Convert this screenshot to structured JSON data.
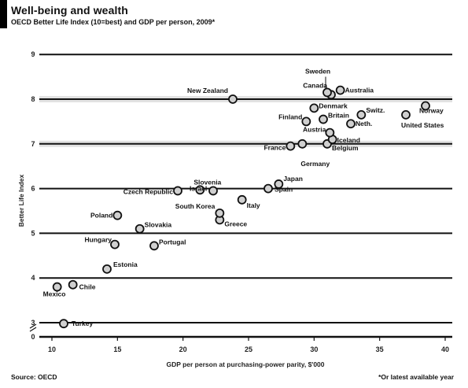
{
  "header": {
    "title": "Well-being and wealth",
    "subtitle": "OECD Better Life Index (10=best) and GDP per person, 2009*"
  },
  "footer": {
    "source": "Source: OECD",
    "note": "*Or latest available year"
  },
  "chart_data": {
    "type": "scatter",
    "title": "Well-being and wealth",
    "subtitle": "OECD Better Life Index (10=best) and GDP per person, 2009*",
    "xlabel": "GDP per person at purchasing-power parity, $'000",
    "ylabel": "Better Life Index",
    "x_ticks": [
      "10",
      "15",
      "20",
      "25",
      "30",
      "35",
      "40"
    ],
    "y_ticks": [
      "9",
      "8",
      "7",
      "6",
      "5",
      "4",
      "3",
      "0"
    ],
    "xlim": [
      10,
      40
    ],
    "y_axis_broken": true,
    "grid": "horizontal",
    "points": [
      {
        "label": "Turkey",
        "x": 10.9,
        "y": 2.8
      },
      {
        "label": "Mexico",
        "x": 10.4,
        "y": 3.8
      },
      {
        "label": "Chile",
        "x": 11.6,
        "y": 3.85
      },
      {
        "label": "Estonia",
        "x": 14.2,
        "y": 4.2
      },
      {
        "label": "Hungary",
        "x": 14.8,
        "y": 4.75
      },
      {
        "label": "Portugal",
        "x": 17.8,
        "y": 4.72
      },
      {
        "label": "Slovakia",
        "x": 16.7,
        "y": 5.1
      },
      {
        "label": "Poland",
        "x": 15.0,
        "y": 5.4
      },
      {
        "label": "Czech Republic",
        "x": 19.6,
        "y": 5.95
      },
      {
        "label": "Slovenia",
        "x": 21.3,
        "y": 5.97
      },
      {
        "label": "Greece",
        "x": 22.8,
        "y": 5.3
      },
      {
        "label": "South Korea",
        "x": 22.8,
        "y": 5.45
      },
      {
        "label": "Israel",
        "x": 22.3,
        "y": 5.95
      },
      {
        "label": "Italy",
        "x": 24.5,
        "y": 5.75
      },
      {
        "label": "Spain",
        "x": 26.5,
        "y": 6.0
      },
      {
        "label": "Japan",
        "x": 27.3,
        "y": 6.1
      },
      {
        "label": "New Zealand",
        "x": 23.8,
        "y": 8.0
      },
      {
        "label": "France",
        "x": 28.2,
        "y": 6.95
      },
      {
        "label": "Germany",
        "x": 29.1,
        "y": 7.0
      },
      {
        "label": "Belgium",
        "x": 31.0,
        "y": 7.0
      },
      {
        "label": "Iceland",
        "x": 31.4,
        "y": 7.1
      },
      {
        "label": "Austria",
        "x": 31.2,
        "y": 7.25
      },
      {
        "label": "Netherlands",
        "x": 32.8,
        "y": 7.45
      },
      {
        "label": "Switzerland",
        "x": 33.6,
        "y": 7.65
      },
      {
        "label": "United Kingdom",
        "x": 30.7,
        "y": 7.55
      },
      {
        "label": "Finland",
        "x": 29.4,
        "y": 7.5
      },
      {
        "label": "Denmark",
        "x": 30.0,
        "y": 7.8
      },
      {
        "label": "Canada",
        "x": 31.3,
        "y": 8.1
      },
      {
        "label": "Sweden",
        "x": 31.0,
        "y": 8.15
      },
      {
        "label": "Australia",
        "x": 32.0,
        "y": 8.2
      },
      {
        "label": "United States",
        "x": 37.0,
        "y": 7.65
      },
      {
        "label": "Norway",
        "x": 38.5,
        "y": 7.85
      }
    ],
    "point_labels": {
      "Turkey": "Turkey",
      "Mexico": "Mexico",
      "Chile": "Chile",
      "Estonia": "Estonia",
      "Hungary": "Hungary",
      "Portugal": "Portugal",
      "Slovakia": "Slovakia",
      "Poland": "Poland",
      "Czech Republic": "Czech Republic",
      "Slovenia": "Slovenia",
      "Greece": "Greece",
      "South Korea": "South Korea",
      "Israel": "Israel",
      "Italy": "Italy",
      "Spain": "Spain",
      "Japan": "Japan",
      "New Zealand": "New Zealand",
      "France": "France",
      "Germany": "Germany",
      "Belgium": "Belgium",
      "Iceland": "Iceland",
      "Austria": "Austria",
      "Netherlands": "Neth.",
      "Switzerland": "Switz.",
      "United Kingdom": "Britain",
      "Finland": "Finland",
      "Denmark": "Denmark",
      "Canada": "Canada",
      "Sweden": "Sweden",
      "Australia": "Australia",
      "United States": "United States",
      "Norway": "Norway"
    }
  }
}
